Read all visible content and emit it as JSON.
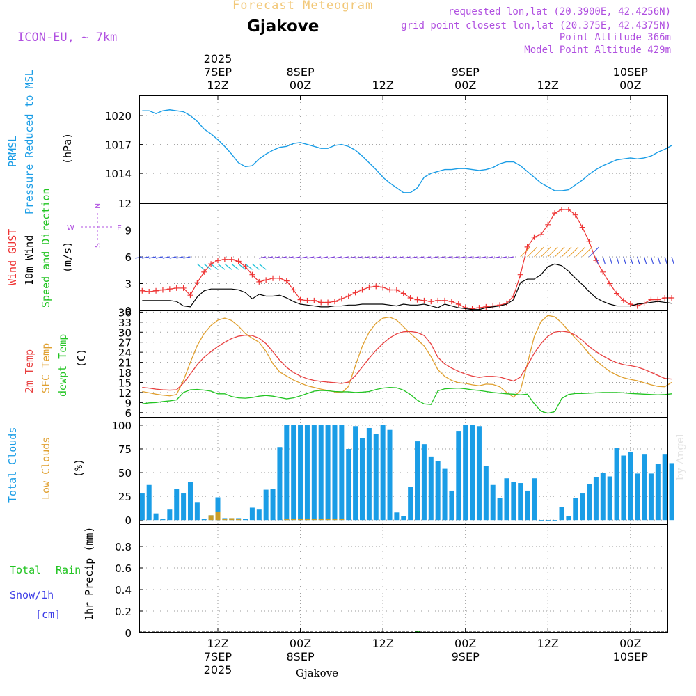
{
  "header": {
    "title": "Forecast Meteogram",
    "location": "Gjakove",
    "model": "ICON-EU, ~ 7km",
    "requested": "requested lon,lat (20.3900E, 42.4256N)",
    "gridpoint": "grid point closest lon,lat (20.375E, 42.4375N)",
    "point_alt": "Point Altitude 366m",
    "model_alt": "Model Point Altitude 429m",
    "watermark": "by Angel",
    "footer_location": "Gjakove"
  },
  "time_axis": {
    "top": [
      {
        "lines": [
          "2025",
          "7SEP",
          "12Z"
        ],
        "t": 0
      },
      {
        "lines": [
          "8SEP",
          "00Z"
        ],
        "t": 12
      },
      {
        "lines": [
          "12Z"
        ],
        "t": 24
      },
      {
        "lines": [
          "9SEP",
          "00Z"
        ],
        "t": 36
      },
      {
        "lines": [
          "12Z"
        ],
        "t": 48
      },
      {
        "lines": [
          "10SEP",
          "00Z"
        ],
        "t": 60
      }
    ],
    "bottom": [
      {
        "lines": [
          "12Z",
          "7SEP",
          "2025"
        ],
        "t": 0
      },
      {
        "lines": [
          "00Z",
          "8SEP"
        ],
        "t": 12
      },
      {
        "lines": [
          "12Z"
        ],
        "t": 24
      },
      {
        "lines": [
          "00Z",
          "9SEP"
        ],
        "t": 36
      },
      {
        "lines": [
          "12Z"
        ],
        "t": 48
      },
      {
        "lines": [
          "00Z",
          "10SEP"
        ],
        "t": 60
      }
    ]
  },
  "labels": {
    "p1": [
      "PRMSL",
      "Pressure Reduced to MSL",
      "(hPa)"
    ],
    "p2": [
      "Wind GUST",
      "10m Wind",
      "Speed and Direction",
      "(m/s)"
    ],
    "p2_compass": {
      "n": "N",
      "s": "S",
      "w": "W",
      "e": "E"
    },
    "p3": [
      "2m Temp",
      "SFC Temp",
      "dewpt Temp",
      "(C)"
    ],
    "p4": [
      "Total Clouds",
      "Low Clouds",
      "(%)"
    ],
    "p5": [
      "Total",
      "Rain",
      "Snow/1h",
      "[cm]",
      "1hr Precip (mm)"
    ]
  },
  "colors": {
    "pressure": "#1a9de6",
    "gust": "#ee3333",
    "wind": "#000000",
    "temp2m": "#e84040",
    "sfctemp": "#e0a030",
    "dewpt": "#22c422",
    "clouds_total": "#1a9de6",
    "clouds_low": "#c89c28",
    "total_label": "#22c422",
    "snow_label": "#3a3ae6"
  },
  "chart_data": [
    {
      "type": "line",
      "title": "PRMSL Pressure Reduced to MSL",
      "ylabel": "(hPa)",
      "ylim": [
        1010.9,
        1022.1
      ],
      "yticks": [
        1014,
        1017,
        1020
      ],
      "x_start_hours": -11,
      "x_step_hours": 1,
      "series": [
        {
          "name": "PRMSL",
          "values": [
            1020.5,
            1020.5,
            1020.2,
            1020.5,
            1020.6,
            1020.5,
            1020.4,
            1020.0,
            1019.4,
            1018.6,
            1018.1,
            1017.5,
            1016.8,
            1016.0,
            1015.1,
            1014.7,
            1014.8,
            1015.5,
            1016.0,
            1016.4,
            1016.7,
            1016.8,
            1017.1,
            1017.2,
            1017.0,
            1016.8,
            1016.6,
            1016.6,
            1016.9,
            1017.0,
            1016.8,
            1016.4,
            1015.8,
            1015.1,
            1014.4,
            1013.6,
            1013.0,
            1012.5,
            1012.0,
            1012.0,
            1012.5,
            1013.6,
            1014.0,
            1014.2,
            1014.4,
            1014.4,
            1014.5,
            1014.5,
            1014.4,
            1014.3,
            1014.4,
            1014.6,
            1015.0,
            1015.2,
            1015.2,
            1014.8,
            1014.2,
            1013.6,
            1013.0,
            1012.6,
            1012.2,
            1012.2,
            1012.3,
            1012.8,
            1013.3,
            1013.9,
            1014.4,
            1014.8,
            1015.1,
            1015.4,
            1015.5,
            1015.6,
            1015.5,
            1015.6,
            1015.8,
            1016.2,
            1016.5,
            1016.9
          ]
        }
      ]
    },
    {
      "type": "line",
      "title": "Wind GUST / 10m Wind Speed and Direction",
      "ylabel": "(m/s)",
      "ylim": [
        0,
        12
      ],
      "yticks": [
        0,
        3,
        6,
        9,
        12
      ],
      "x_start_hours": -11,
      "x_step_hours": 1,
      "series": [
        {
          "name": "Wind GUST",
          "values": [
            2.2,
            2.1,
            2.2,
            2.3,
            2.4,
            2.5,
            2.5,
            1.7,
            3.1,
            4.3,
            5.2,
            5.6,
            5.7,
            5.7,
            5.5,
            4.9,
            4.0,
            3.2,
            3.4,
            3.6,
            3.6,
            3.3,
            2.3,
            1.2,
            1.1,
            1.1,
            0.9,
            0.9,
            1.0,
            1.3,
            1.6,
            2.0,
            2.3,
            2.6,
            2.7,
            2.6,
            2.3,
            2.3,
            1.9,
            1.4,
            1.2,
            1.1,
            1.0,
            1.1,
            1.1,
            1.0,
            0.7,
            0.3,
            0.2,
            0.3,
            0.4,
            0.5,
            0.6,
            0.8,
            1.6,
            4.0,
            7.1,
            8.2,
            8.5,
            9.6,
            10.9,
            11.3,
            11.3,
            10.7,
            9.3,
            7.7,
            5.6,
            4.3,
            3.0,
            1.9,
            1.1,
            0.7,
            0.5,
            0.8,
            1.2,
            1.2,
            1.4,
            1.4
          ]
        },
        {
          "name": "10m Wind",
          "values": [
            1.1,
            1.1,
            1.1,
            1.1,
            1.1,
            1.0,
            0.5,
            0.4,
            1.5,
            2.2,
            2.4,
            2.4,
            2.4,
            2.4,
            2.3,
            2.0,
            1.3,
            1.8,
            1.6,
            1.6,
            1.7,
            1.4,
            1.0,
            0.7,
            0.6,
            0.5,
            0.4,
            0.4,
            0.5,
            0.5,
            0.6,
            0.6,
            0.7,
            0.7,
            0.7,
            0.7,
            0.6,
            0.5,
            0.7,
            0.6,
            0.6,
            0.7,
            0.5,
            0.3,
            0.7,
            0.5,
            0.3,
            0.2,
            0.1,
            0.1,
            0.3,
            0.4,
            0.5,
            0.7,
            1.2,
            3.1,
            3.5,
            3.5,
            4.0,
            4.9,
            5.2,
            5.0,
            4.4,
            3.6,
            2.9,
            2.1,
            1.4,
            1.0,
            0.7,
            0.5,
            0.5,
            0.5,
            0.7,
            0.8,
            0.9,
            1.0,
            0.9,
            0.8
          ]
        }
      ]
    },
    {
      "type": "line",
      "title": "2m Temp / SFC Temp / dewpt Temp",
      "ylabel": "(C)",
      "ylim": [
        4.5,
        36.5
      ],
      "yticks": [
        6,
        9,
        12,
        15,
        18,
        21,
        24,
        27,
        30,
        33,
        36
      ],
      "x_start_hours": -11,
      "x_step_hours": 1,
      "series": [
        {
          "name": "2m Temp",
          "values": [
            13.5,
            13.3,
            13.0,
            12.8,
            12.7,
            12.8,
            14.8,
            17.5,
            20.3,
            22.5,
            24.2,
            25.7,
            27.0,
            28.1,
            28.8,
            29.1,
            29.0,
            28.2,
            26.6,
            24.2,
            21.6,
            19.5,
            18.0,
            16.9,
            16.1,
            15.6,
            15.3,
            15.1,
            14.9,
            14.7,
            15.1,
            17.0,
            19.6,
            22.2,
            24.6,
            26.6,
            28.3,
            29.5,
            30.1,
            30.2,
            29.9,
            29.0,
            26.5,
            22.5,
            20.5,
            19.3,
            18.3,
            17.5,
            16.9,
            16.5,
            16.8,
            16.8,
            16.6,
            16.0,
            15.4,
            16.6,
            20.0,
            23.7,
            26.6,
            28.8,
            30.0,
            30.3,
            30.0,
            29.1,
            27.6,
            25.7,
            24.2,
            22.9,
            21.8,
            20.9,
            20.3,
            20.0,
            19.6,
            18.9,
            18.0,
            17.1,
            16.2,
            16.0
          ]
        },
        {
          "name": "SFC Temp",
          "values": [
            12.3,
            11.9,
            11.5,
            11.2,
            11.0,
            11.4,
            15.6,
            21.0,
            26.0,
            29.6,
            32.0,
            33.6,
            34.2,
            33.5,
            31.8,
            29.6,
            28.2,
            27.0,
            24.3,
            20.6,
            18.1,
            16.9,
            15.7,
            14.8,
            14.0,
            13.5,
            13.0,
            12.6,
            12.2,
            11.9,
            13.8,
            20.0,
            25.8,
            30.0,
            32.7,
            34.2,
            34.5,
            33.6,
            31.6,
            29.6,
            27.8,
            25.9,
            22.7,
            18.8,
            16.8,
            15.6,
            14.9,
            14.7,
            14.3,
            14.0,
            14.5,
            14.4,
            13.7,
            12.0,
            10.6,
            12.6,
            20.5,
            28.6,
            33.2,
            35.0,
            34.6,
            32.8,
            30.4,
            28.2,
            26.1,
            23.5,
            21.5,
            19.8,
            18.3,
            17.2,
            16.4,
            15.9,
            15.5,
            14.9,
            14.3,
            13.8,
            13.7,
            15.0
          ]
        },
        {
          "name": "dewpt Temp",
          "values": [
            8.6,
            8.9,
            9.0,
            9.3,
            9.5,
            9.8,
            12.0,
            12.8,
            12.9,
            12.7,
            12.4,
            11.6,
            11.6,
            10.8,
            10.4,
            10.3,
            10.5,
            10.9,
            11.1,
            10.9,
            10.5,
            10.1,
            10.4,
            11.0,
            11.7,
            12.4,
            12.6,
            12.5,
            12.3,
            12.2,
            12.2,
            12.0,
            12.1,
            12.3,
            12.9,
            13.3,
            13.5,
            13.4,
            12.7,
            11.4,
            9.7,
            8.6,
            8.4,
            12.5,
            13.1,
            13.2,
            13.3,
            13.1,
            12.8,
            12.6,
            12.3,
            12.0,
            11.8,
            11.6,
            11.5,
            11.3,
            11.5,
            8.7,
            6.4,
            5.8,
            6.3,
            10.2,
            11.4,
            11.7,
            11.7,
            11.8,
            11.9,
            12.0,
            12.0,
            12.0,
            11.9,
            11.7,
            11.6,
            11.5,
            11.4,
            11.3,
            11.4,
            11.6
          ]
        }
      ]
    },
    {
      "type": "bar",
      "title": "Total Clouds / Low Clouds",
      "ylabel": "(%)",
      "ylim": [
        -5,
        108
      ],
      "yticks": [
        0,
        25,
        50,
        75,
        100
      ],
      "x_start_hours": -11,
      "x_step_hours": 1,
      "series": [
        {
          "name": "Total Clouds",
          "values": [
            28,
            37,
            7,
            1,
            11,
            33,
            28,
            40,
            19,
            1,
            5,
            24,
            2,
            2,
            2,
            1,
            13,
            11,
            32,
            33,
            77,
            100,
            100,
            100,
            100,
            100,
            100,
            100,
            100,
            100,
            75,
            99,
            86,
            97,
            91,
            100,
            95,
            8,
            4,
            35,
            83,
            80,
            67,
            62,
            54,
            31,
            94,
            100,
            100,
            99,
            57,
            37,
            23,
            44,
            40,
            39,
            31,
            44,
            0,
            0,
            0,
            14,
            4,
            23,
            28,
            38,
            45,
            50,
            46,
            76,
            68,
            72,
            49,
            69,
            49,
            59,
            69,
            60
          ]
        },
        {
          "name": "Low Clouds",
          "values": [
            0,
            0,
            0,
            0,
            0,
            0,
            0,
            0,
            0,
            0,
            5,
            9,
            1,
            2,
            1,
            0,
            0,
            0,
            0,
            0,
            0,
            1,
            1,
            1,
            1,
            1,
            1,
            1,
            1,
            1,
            0,
            0,
            0,
            0,
            0,
            0,
            0,
            0,
            0,
            0,
            0,
            0,
            0,
            0,
            0,
            0,
            0,
            0,
            0,
            0,
            0,
            0,
            0,
            0,
            0,
            0,
            0,
            0,
            0,
            0,
            0,
            0,
            0,
            0,
            0,
            0,
            0,
            0,
            0,
            0,
            0,
            0,
            0,
            0,
            0,
            0,
            0,
            0
          ]
        }
      ]
    },
    {
      "type": "bar",
      "title": "1hr Precip (mm)",
      "ylabel": "1hr Precip (mm)",
      "ylim": [
        0,
        1.0
      ],
      "yticks": [
        0,
        0.2,
        0.4,
        0.6,
        0.8
      ],
      "x_start_hours": -11,
      "x_step_hours": 1,
      "series": [
        {
          "name": "Total Rain",
          "values": [
            0,
            0,
            0,
            0,
            0,
            0,
            0,
            0,
            0,
            0,
            0,
            0,
            0,
            0,
            0,
            0,
            0,
            0,
            0,
            0,
            0,
            0,
            0,
            0,
            0,
            0,
            0,
            0,
            0,
            0,
            0,
            0,
            0,
            0,
            0,
            0,
            0,
            0,
            0,
            0,
            0.01,
            0,
            0,
            0,
            0,
            0,
            0,
            0,
            0,
            0,
            0,
            0,
            0,
            0,
            0,
            0,
            0,
            0,
            0,
            0,
            0,
            0,
            0,
            0,
            0,
            0,
            0,
            0,
            0,
            0,
            0,
            0,
            0,
            0,
            0,
            0,
            0,
            0
          ]
        }
      ]
    }
  ]
}
